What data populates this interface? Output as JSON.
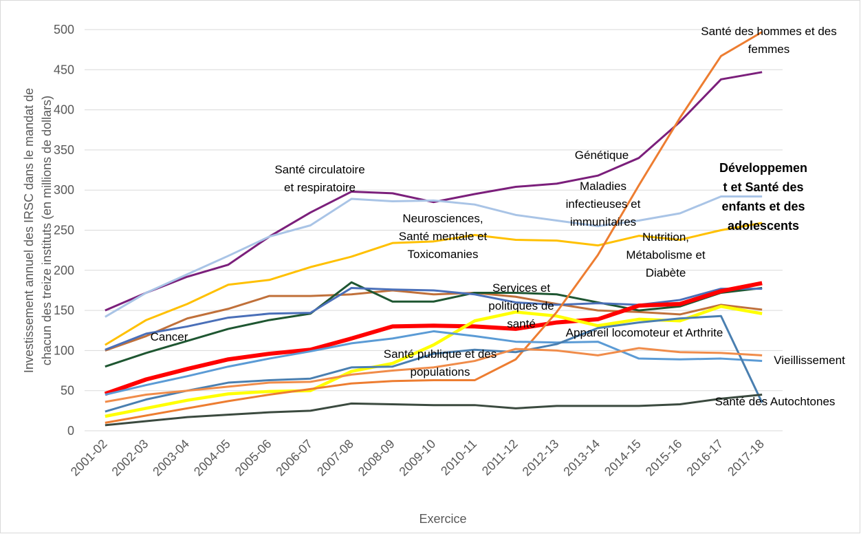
{
  "chart_data": {
    "type": "line",
    "y_axis_label": "Investissement annuel des IRSC dans le mandat de chacun des treize instituts  (en millions de dollars)",
    "x_axis_label": "Exercice",
    "categories": [
      "2001-02",
      "2002-03",
      "2003-04",
      "2004-05",
      "2005-06",
      "2006-07",
      "2007-08",
      "2008-09",
      "2009-10",
      "2010-11",
      "2011-12",
      "2012-13",
      "2013-14",
      "2014-15",
      "2015-16",
      "2016-17",
      "2017-18"
    ],
    "ylim": [
      0,
      500
    ],
    "yticks": [
      0,
      50,
      100,
      150,
      200,
      250,
      300,
      350,
      400,
      450,
      500
    ],
    "grid": true,
    "series": [
      {
        "name": "Génétique",
        "color": "#7b1f7b",
        "values": [
          150,
          172,
          192,
          207,
          242,
          272,
          298,
          296,
          285,
          295,
          304,
          308,
          318,
          340,
          385,
          438,
          447
        ]
      },
      {
        "name": "Maladies infectieuses et immunitaires",
        "color": "#a9c4e6",
        "values": [
          142,
          172,
          195,
          218,
          242,
          256,
          289,
          286,
          287,
          282,
          269,
          262,
          255,
          262,
          271,
          292,
          292
        ]
      },
      {
        "name": "Neurosciences, Santé mentale et Toxicomanies",
        "color": "#ffc000",
        "values": [
          107,
          138,
          158,
          182,
          188,
          204,
          217,
          234,
          236,
          244,
          238,
          237,
          231,
          243,
          238,
          250,
          259
        ]
      },
      {
        "name": "Santé circulatoire et respiratoire",
        "color": "#c0703a",
        "values": [
          100,
          118,
          140,
          152,
          168,
          168,
          170,
          175,
          170,
          172,
          167,
          158,
          150,
          148,
          145,
          157,
          151
        ]
      },
      {
        "name": "Nutrition, Métabolisme et Diabète",
        "color": "#1e5631",
        "values": [
          80,
          97,
          112,
          127,
          138,
          146,
          185,
          161,
          161,
          172,
          172,
          170,
          160,
          150,
          155,
          172,
          178
        ]
      },
      {
        "name": "Cancer",
        "color": "#4a6fb8",
        "values": [
          101,
          121,
          130,
          141,
          146,
          147,
          178,
          176,
          175,
          170,
          160,
          157,
          159,
          157,
          163,
          177,
          177
        ]
      },
      {
        "name": "Développement et Santé des enfants et des adolescents",
        "color": "#ff0000",
        "values": [
          46,
          64,
          77,
          89,
          96,
          101,
          115,
          130,
          131,
          130,
          127,
          135,
          139,
          156,
          158,
          174,
          184
        ]
      },
      {
        "name": "Services et politiques de santé",
        "color": "#ffff00",
        "values": [
          18,
          28,
          38,
          46,
          49,
          50,
          74,
          84,
          107,
          137,
          148,
          143,
          131,
          139,
          137,
          155,
          146
        ]
      },
      {
        "name": "Santé des hommes et des femmes",
        "color": "#ed7d31",
        "values": [
          10,
          19,
          28,
          37,
          45,
          52,
          59,
          62,
          63,
          63,
          89,
          148,
          219,
          306,
          390,
          467,
          497
        ]
      },
      {
        "name": "Santé publique et des populations",
        "color": "#5b9bd5",
        "values": [
          45,
          57,
          68,
          80,
          90,
          99,
          109,
          115,
          124,
          118,
          111,
          110,
          111,
          90,
          89,
          90,
          87
        ]
      },
      {
        "name": "Appareil locomoteur et Arthrite",
        "color": "#4a7fb0",
        "values": [
          24,
          39,
          50,
          60,
          63,
          65,
          79,
          80,
          96,
          101,
          98,
          108,
          128,
          135,
          140,
          143,
          35
        ]
      },
      {
        "name": "Vieillissement",
        "color": "#f08c4a",
        "values": [
          36,
          45,
          50,
          55,
          60,
          61,
          70,
          75,
          79,
          87,
          102,
          100,
          94,
          103,
          98,
          97,
          94
        ]
      },
      {
        "name": "Santé des Autochtones",
        "color": "#3b4a3f",
        "values": [
          7,
          12,
          17,
          20,
          23,
          25,
          34,
          33,
          32,
          32,
          28,
          31,
          31,
          31,
          33,
          40,
          45
        ]
      }
    ]
  }
}
